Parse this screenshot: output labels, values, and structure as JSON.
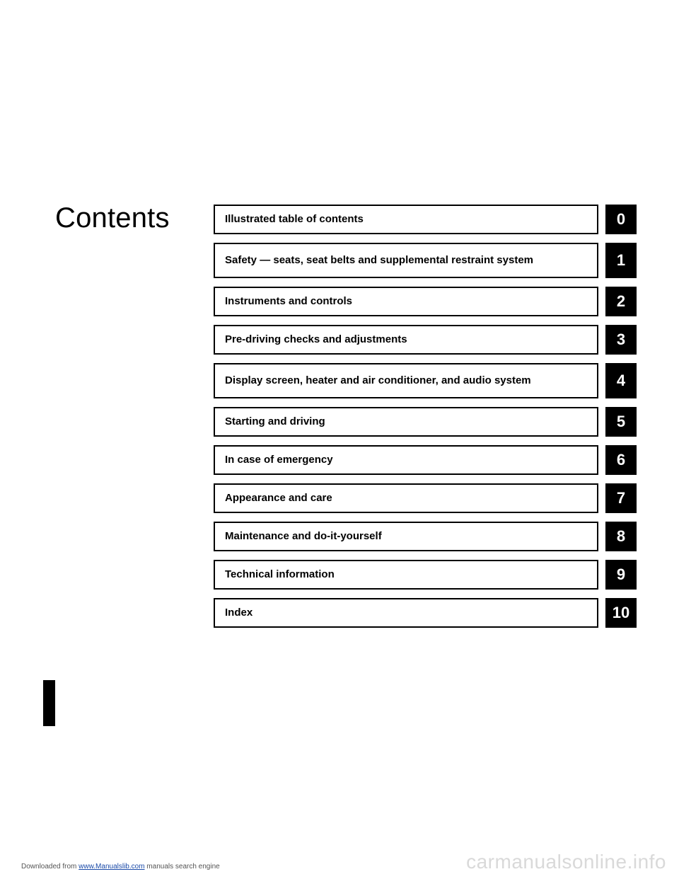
{
  "heading": "Contents",
  "toc": [
    {
      "label": "Illustrated table of contents",
      "num": "0",
      "tall": false
    },
    {
      "label": "Safety — seats, seat belts and supplemental restraint system",
      "num": "1",
      "tall": true
    },
    {
      "label": "Instruments and controls",
      "num": "2",
      "tall": false
    },
    {
      "label": "Pre-driving checks and adjustments",
      "num": "3",
      "tall": false
    },
    {
      "label": "Display screen, heater and air conditioner, and audio system",
      "num": "4",
      "tall": true
    },
    {
      "label": "Starting and driving",
      "num": "5",
      "tall": false
    },
    {
      "label": "In case of emergency",
      "num": "6",
      "tall": false
    },
    {
      "label": "Appearance and care",
      "num": "7",
      "tall": false
    },
    {
      "label": "Maintenance and do-it-yourself",
      "num": "8",
      "tall": false
    },
    {
      "label": "Technical information",
      "num": "9",
      "tall": false
    },
    {
      "label": "Index",
      "num": "10",
      "tall": false
    }
  ],
  "footer": {
    "prefix": "Downloaded from ",
    "link_text": "www.Manualslib.com",
    "suffix": " manuals search engine"
  },
  "watermark": "carmanualsonline.info",
  "colors": {
    "text": "#000000",
    "tab_bg": "#000000",
    "tab_text": "#ffffff",
    "watermark": "#d9d9d9"
  }
}
